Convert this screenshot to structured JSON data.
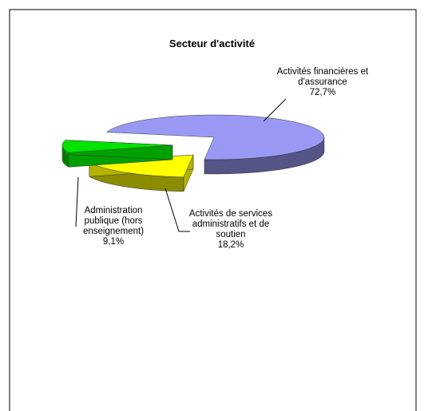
{
  "chart_data": {
    "type": "pie3d",
    "title": "Secteur d'activité",
    "categories": [
      "Activités financières et d'assurance",
      "Activités de services administratifs et de soutien",
      "Administration publique (hors enseignement)"
    ],
    "values": [
      72.7,
      18.2,
      9.1
    ],
    "value_labels": [
      "72,7%",
      "18,2%",
      "9,1%"
    ],
    "colors": [
      "#9999f5",
      "#ffff00",
      "#00e400"
    ]
  }
}
